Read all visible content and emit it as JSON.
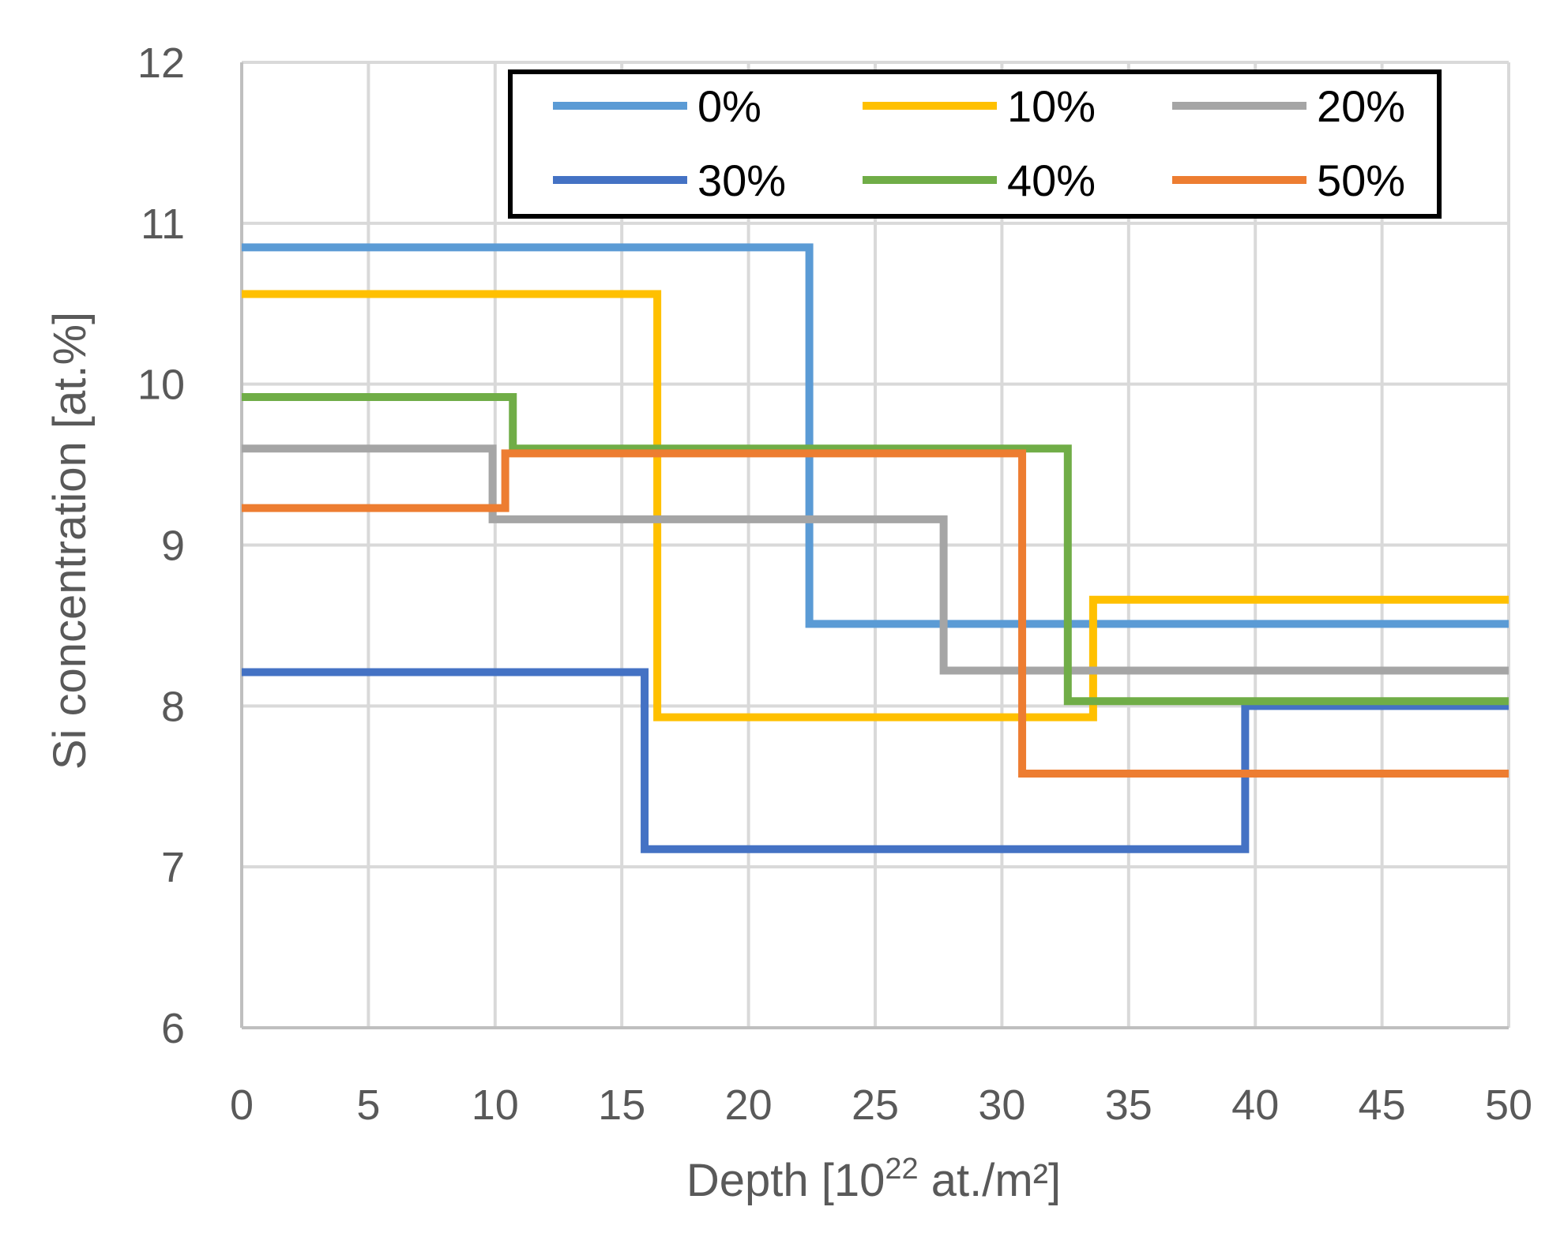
{
  "chart_data": {
    "type": "line",
    "subtype": "step",
    "title": "",
    "xlabel": "Depth [10",
    "xlabel_sup": "22",
    "xlabel_tail": " at./m²]",
    "ylabel": "Si concentration [at.%]",
    "xlim": [
      0,
      50
    ],
    "ylim": [
      6,
      12
    ],
    "x_ticks": [
      "0",
      "5",
      "10",
      "15",
      "20",
      "25",
      "30",
      "35",
      "40",
      "45",
      "50"
    ],
    "y_ticks": [
      "6",
      "7",
      "8",
      "9",
      "10",
      "11",
      "12"
    ],
    "grid": true,
    "legend_position": "top-right",
    "series": [
      {
        "name": "0%",
        "color": "#5b9bd5",
        "steps": [
          [
            0,
            10.85
          ],
          [
            22.4,
            8.51
          ],
          [
            50,
            8.51
          ]
        ]
      },
      {
        "name": "10%",
        "color": "#ffc000",
        "steps": [
          [
            0,
            10.56
          ],
          [
            16.4,
            7.93
          ],
          [
            33.6,
            8.66
          ],
          [
            50,
            8.66
          ]
        ]
      },
      {
        "name": "20%",
        "color": "#a5a5a5",
        "steps": [
          [
            0,
            9.6
          ],
          [
            9.9,
            9.16
          ],
          [
            27.7,
            8.22
          ],
          [
            50,
            8.22
          ]
        ]
      },
      {
        "name": "30%",
        "color": "#4472c4",
        "steps": [
          [
            0,
            8.21
          ],
          [
            15.9,
            7.11
          ],
          [
            39.6,
            8.0
          ],
          [
            50,
            8.0
          ]
        ]
      },
      {
        "name": "40%",
        "color": "#70ad47",
        "steps": [
          [
            0,
            9.92
          ],
          [
            10.7,
            9.6
          ],
          [
            32.6,
            8.03
          ],
          [
            50,
            8.03
          ]
        ]
      },
      {
        "name": "50%",
        "color": "#ed7d31",
        "steps": [
          [
            0,
            9.23
          ],
          [
            10.4,
            9.57
          ],
          [
            30.8,
            7.58
          ],
          [
            50,
            7.58
          ]
        ]
      }
    ]
  }
}
